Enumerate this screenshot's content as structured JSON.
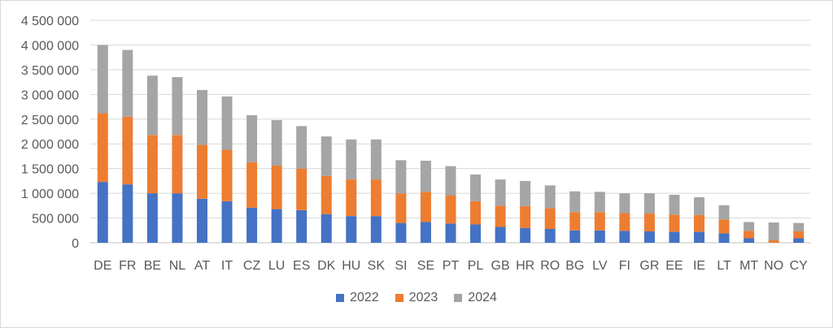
{
  "chart_data": {
    "type": "bar",
    "stacked": true,
    "categories": [
      "DE",
      "FR",
      "BE",
      "NL",
      "AT",
      "IT",
      "CZ",
      "LU",
      "ES",
      "DK",
      "HU",
      "SK",
      "SI",
      "SE",
      "PT",
      "PL",
      "GB",
      "HR",
      "RO",
      "BG",
      "LV",
      "FI",
      "GR",
      "EE",
      "IE",
      "LT",
      "MT",
      "NO",
      "CY"
    ],
    "series": [
      {
        "name": "2022",
        "color": "#4472C4",
        "values": [
          1230000,
          1180000,
          1000000,
          1000000,
          890000,
          840000,
          710000,
          680000,
          660000,
          580000,
          540000,
          540000,
          400000,
          420000,
          390000,
          370000,
          320000,
          300000,
          280000,
          250000,
          250000,
          240000,
          230000,
          220000,
          220000,
          190000,
          90000,
          0,
          90000
        ]
      },
      {
        "name": "2023",
        "color": "#ED7D31",
        "values": [
          1390000,
          1370000,
          1180000,
          1180000,
          1090000,
          1040000,
          920000,
          880000,
          840000,
          770000,
          740000,
          740000,
          600000,
          610000,
          570000,
          470000,
          430000,
          440000,
          420000,
          370000,
          370000,
          360000,
          360000,
          350000,
          340000,
          280000,
          150000,
          50000,
          140000
        ]
      },
      {
        "name": "2024",
        "color": "#A5A5A5",
        "values": [
          1380000,
          1350000,
          1200000,
          1170000,
          1110000,
          1080000,
          950000,
          920000,
          860000,
          800000,
          810000,
          810000,
          670000,
          630000,
          590000,
          540000,
          530000,
          510000,
          460000,
          420000,
          410000,
          400000,
          410000,
          400000,
          360000,
          290000,
          180000,
          360000,
          170000
        ]
      }
    ],
    "yticks": [
      "0",
      "500 000",
      "1 000 000",
      "1 500 000",
      "2 000 000",
      "2 500 000",
      "3 000 000",
      "3 500 000",
      "4 000 000",
      "4 500 000"
    ],
    "ylim": [
      0,
      4500000
    ],
    "grid": true,
    "legend_position": "bottom",
    "title": "",
    "xlabel": "",
    "ylabel": ""
  }
}
